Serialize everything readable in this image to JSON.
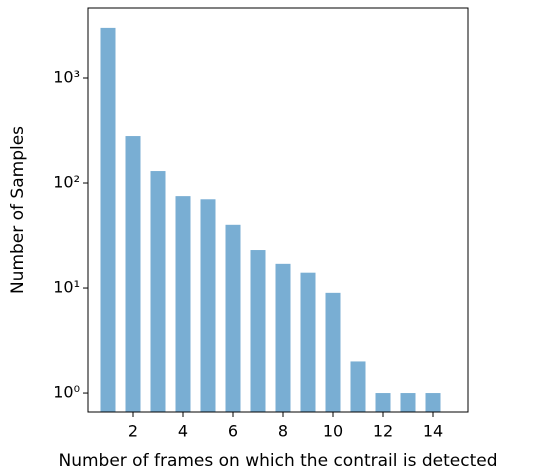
{
  "chart_data": {
    "type": "bar",
    "x": [
      1,
      2,
      3,
      4,
      5,
      6,
      7,
      8,
      9,
      10,
      11,
      12,
      13,
      14
    ],
    "values": [
      3000,
      280,
      130,
      75,
      70,
      40,
      23,
      17,
      14,
      9,
      2,
      1,
      1,
      1
    ],
    "color": "#79aed3",
    "xlabel": "Number of frames on which the contrail is detected",
    "ylabel": "Number of Samples",
    "xlim": [
      0.2,
      15.4
    ],
    "xticks": [
      2,
      4,
      6,
      8,
      10,
      12,
      14
    ],
    "ylim": [
      0.66,
      4640
    ],
    "log_y": true,
    "yticks": [
      {
        "value": 1,
        "label": "10⁰"
      },
      {
        "value": 10,
        "label": "10¹"
      },
      {
        "value": 100,
        "label": "10²"
      },
      {
        "value": 1000,
        "label": "10³"
      }
    ]
  }
}
